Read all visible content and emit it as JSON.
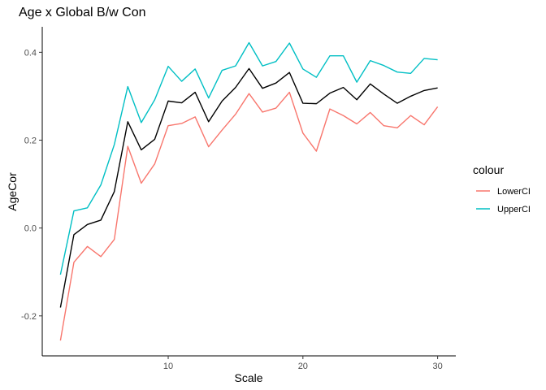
{
  "chart_data": {
    "type": "line",
    "title": "Age x Global B/w Con",
    "xlabel": "Scale",
    "ylabel": "AgeCor",
    "xlim": [
      0.65,
      31.35
    ],
    "ylim": [
      -0.291,
      0.458
    ],
    "x_ticks": [
      10,
      20,
      30
    ],
    "y_ticks": [
      -0.2,
      0.0,
      0.2,
      0.4
    ],
    "x_tick_labels": [
      "10",
      "20",
      "30"
    ],
    "y_tick_labels": [
      "-0.2",
      "0.0",
      "0.2",
      "0.4"
    ],
    "grid": false,
    "legend_position": "right",
    "legend_title": "colour",
    "x": [
      2,
      3,
      4,
      5,
      6,
      7,
      8,
      9,
      10,
      11,
      12,
      13,
      14,
      15,
      16,
      17,
      18,
      19,
      20,
      21,
      22,
      23,
      24,
      25,
      26,
      27,
      28,
      29,
      30
    ],
    "series": [
      {
        "key": "mean",
        "color": "#000000",
        "in_legend": false,
        "values": [
          -0.181,
          -0.015,
          0.008,
          0.018,
          0.083,
          0.242,
          0.178,
          0.202,
          0.289,
          0.285,
          0.309,
          0.242,
          0.289,
          0.32,
          0.363,
          0.318,
          0.33,
          0.354,
          0.284,
          0.283,
          0.307,
          0.32,
          0.292,
          0.328,
          0.305,
          0.284,
          0.3,
          0.313,
          0.319
        ]
      },
      {
        "name": "LowerCI",
        "key": "lower",
        "color": "#F8766D",
        "in_legend": true,
        "values": [
          -0.256,
          -0.078,
          -0.042,
          -0.065,
          -0.026,
          0.186,
          0.102,
          0.146,
          0.233,
          0.238,
          0.253,
          0.185,
          0.223,
          0.259,
          0.306,
          0.264,
          0.273,
          0.309,
          0.216,
          0.175,
          0.271,
          0.256,
          0.237,
          0.263,
          0.233,
          0.228,
          0.256,
          0.235,
          0.276
        ]
      },
      {
        "name": "UpperCI",
        "key": "upper",
        "color": "#00BFC4",
        "in_legend": true,
        "values": [
          -0.106,
          0.039,
          0.046,
          0.098,
          0.19,
          0.322,
          0.24,
          0.292,
          0.368,
          0.334,
          0.362,
          0.296,
          0.359,
          0.369,
          0.422,
          0.369,
          0.379,
          0.421,
          0.362,
          0.343,
          0.392,
          0.392,
          0.332,
          0.381,
          0.37,
          0.355,
          0.352,
          0.386,
          0.383
        ]
      }
    ]
  }
}
